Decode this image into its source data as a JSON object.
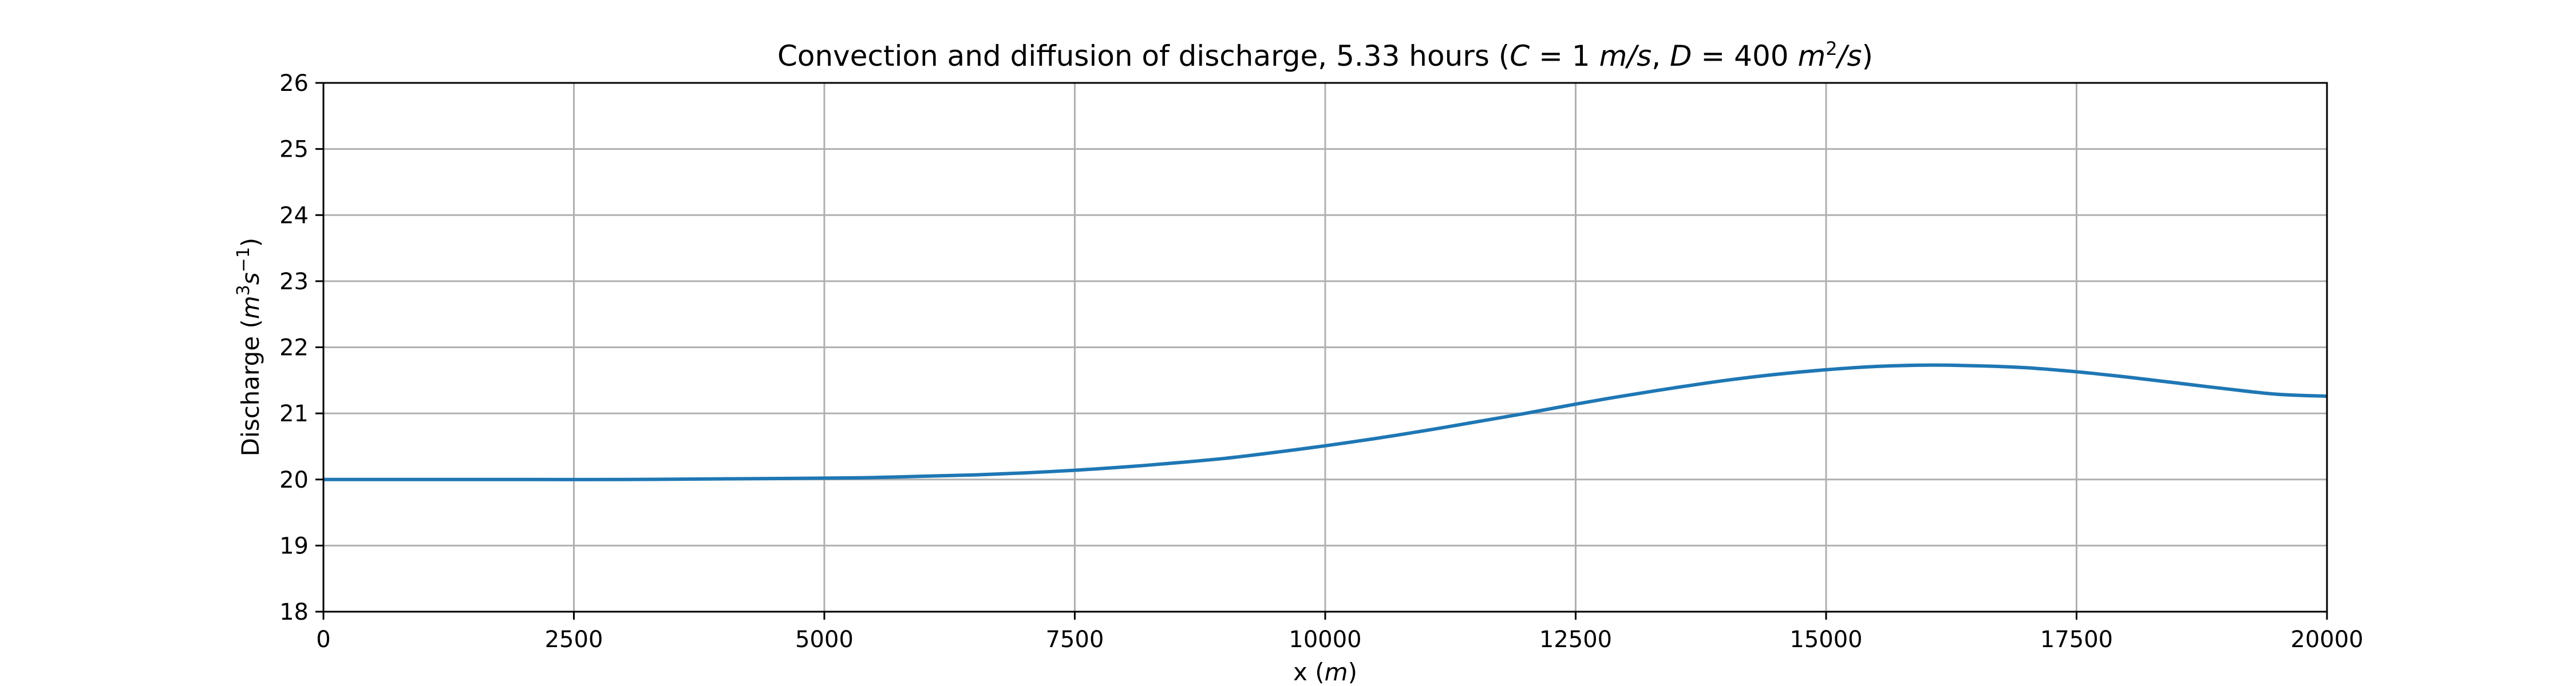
{
  "chart_data": {
    "type": "line",
    "title_main": "Convection and diffusion of discharge, 5.33 hours (",
    "title_c_var": "C",
    "title_c_eq": " = 1 ",
    "title_c_unit": "m/s",
    "title_sep": ", ",
    "title_d_var": "D",
    "title_d_eq": " = 400 ",
    "title_d_unit_base": "m",
    "title_d_unit_sup": "2",
    "title_d_unit_rest": "/s",
    "title_close": ")",
    "xlabel_text": "x (",
    "xlabel_unit": "m",
    "xlabel_close": ")",
    "ylabel_text": "Discharge (",
    "ylabel_m": "m",
    "ylabel_m_sup": "3",
    "ylabel_s": "s",
    "ylabel_s_sup": "−1",
    "ylabel_close": ")",
    "xlim": [
      0,
      20000
    ],
    "ylim": [
      18,
      26
    ],
    "xticks": [
      0,
      2500,
      5000,
      7500,
      10000,
      12500,
      15000,
      17500,
      20000
    ],
    "yticks": [
      18,
      19,
      20,
      21,
      22,
      23,
      24,
      25,
      26
    ],
    "grid": true,
    "line_color": "#1f77b4",
    "series": [
      {
        "x": [
          0,
          1000,
          2000,
          3000,
          4000,
          5000,
          5500,
          6000,
          6500,
          7000,
          7500,
          8000,
          8500,
          9000,
          9500,
          10000,
          10500,
          11000,
          11500,
          12000,
          12500,
          13000,
          13500,
          14000,
          14500,
          15000,
          15500,
          16000,
          16500,
          17000,
          17500,
          18000,
          18500,
          19000,
          19500,
          20000
        ],
        "y": [
          20.0,
          20.0,
          20.0,
          20.0,
          20.01,
          20.02,
          20.03,
          20.05,
          20.07,
          20.1,
          20.14,
          20.19,
          20.25,
          20.32,
          20.41,
          20.51,
          20.62,
          20.74,
          20.87,
          21.0,
          21.14,
          21.27,
          21.39,
          21.5,
          21.59,
          21.66,
          21.71,
          21.73,
          21.72,
          21.69,
          21.63,
          21.55,
          21.46,
          21.37,
          21.29,
          21.26
        ]
      }
    ]
  }
}
